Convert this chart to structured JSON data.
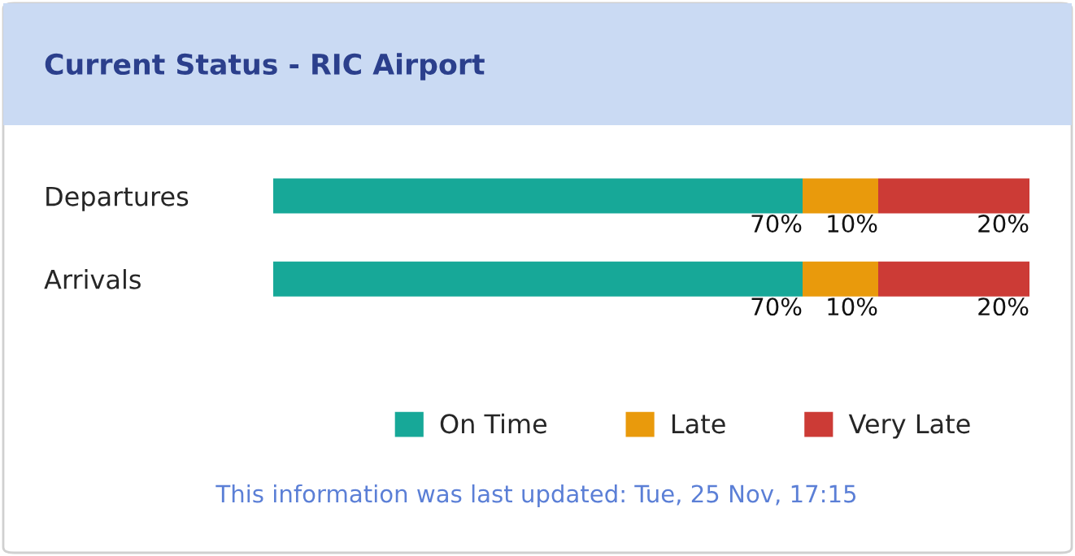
{
  "chart_data": {
    "type": "bar",
    "orientation": "horizontal",
    "stacked": true,
    "title": "Current Status - RIC Airport",
    "categories": [
      "Departures",
      "Arrivals"
    ],
    "xlim": [
      0,
      100
    ],
    "tick_labels": "y",
    "legend": "bottom",
    "series": [
      {
        "name": "On Time",
        "color": "#17a898",
        "values": [
          70,
          70
        ],
        "value_labels": [
          "70%",
          "70%"
        ]
      },
      {
        "name": "Late",
        "color": "#e99a0c",
        "values": [
          10,
          10
        ],
        "value_labels": [
          "10%",
          "10%"
        ]
      },
      {
        "name": "Very Late",
        "color": "#cc3b36",
        "values": [
          20,
          20
        ],
        "value_labels": [
          "20%",
          "20%"
        ]
      }
    ],
    "annotations": [
      "This information was last updated: Tue, 25 Nov, 17:15"
    ]
  }
}
